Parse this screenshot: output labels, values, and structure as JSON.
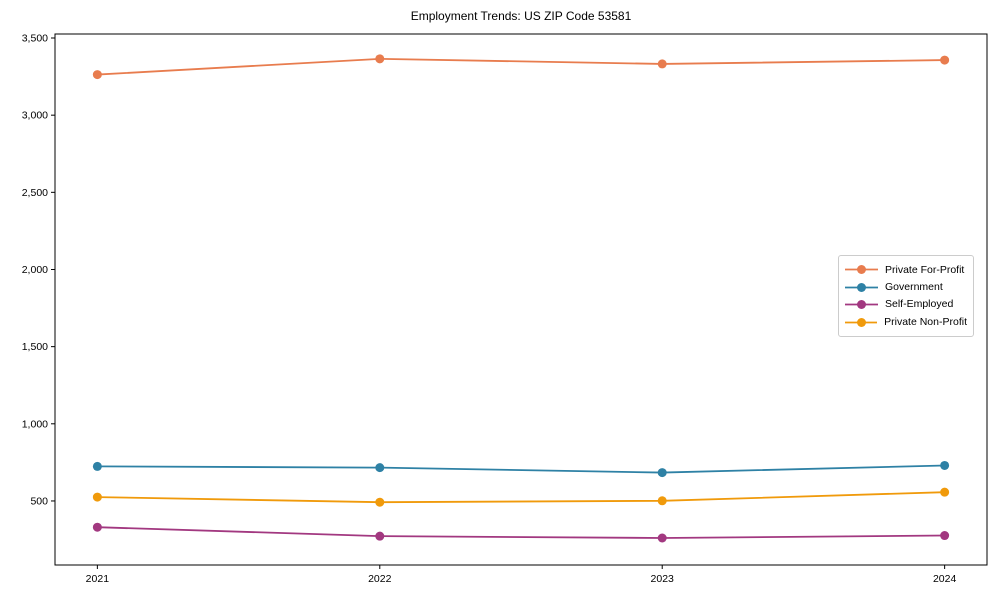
{
  "chart_data": {
    "type": "line",
    "title": "Employment Trends: US ZIP Code 53581",
    "xlabel": "",
    "ylabel": "",
    "x": [
      2021,
      2022,
      2023,
      2024
    ],
    "xtick_labels": [
      "2021",
      "2022",
      "2023",
      "2024"
    ],
    "yticks": [
      500,
      1000,
      1500,
      2000,
      2500,
      3000,
      3500
    ],
    "ytick_labels": [
      "500",
      "1,000",
      "1,500",
      "2,000",
      "2,500",
      "3,000",
      "3,500"
    ],
    "xlim": [
      2020.85,
      2024.15
    ],
    "ylim": [
      85,
      3526
    ],
    "grid": false,
    "legend_position": "center right",
    "marker": "circle",
    "axis_color": "#000000",
    "background_color": "#ffffff",
    "legend_border_color": "#cccccc",
    "series": [
      {
        "name": "Private For-Profit",
        "color": "#E87C4E",
        "values": [
          3263,
          3365,
          3332,
          3357
        ]
      },
      {
        "name": "Government",
        "color": "#2E81A5",
        "values": [
          724,
          716,
          684,
          730
        ]
      },
      {
        "name": "Self-Employed",
        "color": "#A23880",
        "values": [
          330,
          272,
          260,
          276
        ]
      },
      {
        "name": "Private Non-Profit",
        "color": "#F09A0B",
        "values": [
          525,
          492,
          501,
          557
        ]
      }
    ]
  }
}
